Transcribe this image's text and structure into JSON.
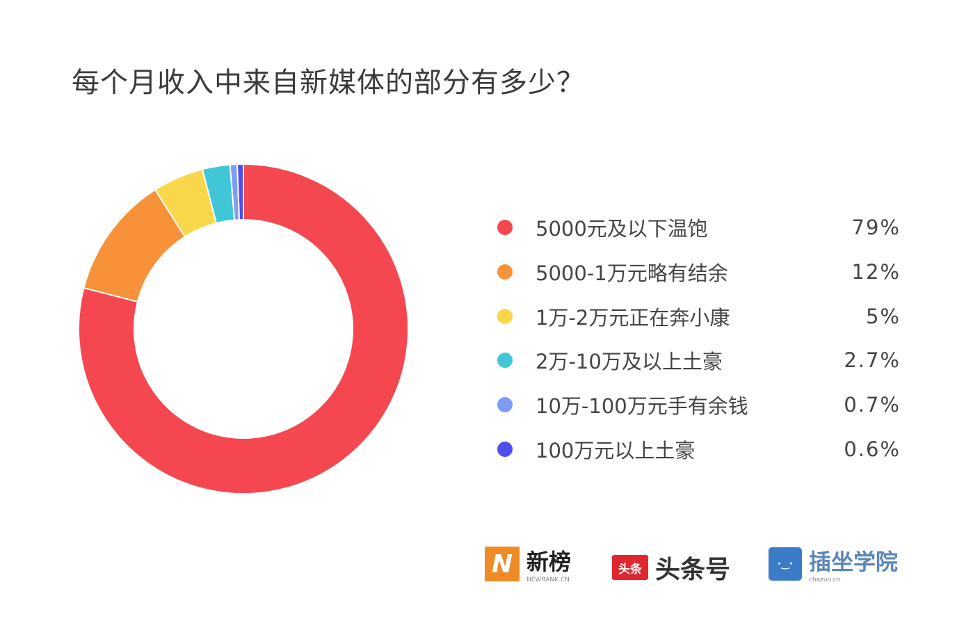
{
  "chart_data": {
    "type": "pie",
    "donut": true,
    "title": "每个月收入中来自新媒体的部分有多少？",
    "categories": [
      "5000元及以下温饱",
      "5000-1万元略有结余",
      "1万-2万元正在奔小康",
      "2万-10万及以上土豪",
      "10万-100万元手有余钱",
      "100万元以上土豪"
    ],
    "values": [
      79,
      12,
      5,
      2.7,
      0.7,
      0.6
    ],
    "value_labels": [
      "79%",
      "12%",
      "5%",
      "2.7%",
      "0.7%",
      "0.6%"
    ],
    "colors": [
      "#f5474f",
      "#f7923a",
      "#f9d74a",
      "#40c6d6",
      "#7f9cf5",
      "#4e4ef0"
    ],
    "legend": "right"
  },
  "logos": {
    "newrank": {
      "name": "新榜",
      "sub": "NEWRANK.CN",
      "color": "#f08a24"
    },
    "toutiao": {
      "name": "头条号",
      "mark": "头条",
      "color": "#e0262f"
    },
    "chazuo": {
      "name": "插坐学院",
      "sub": "chazuo.cn",
      "color": "#3a7cc8"
    }
  }
}
